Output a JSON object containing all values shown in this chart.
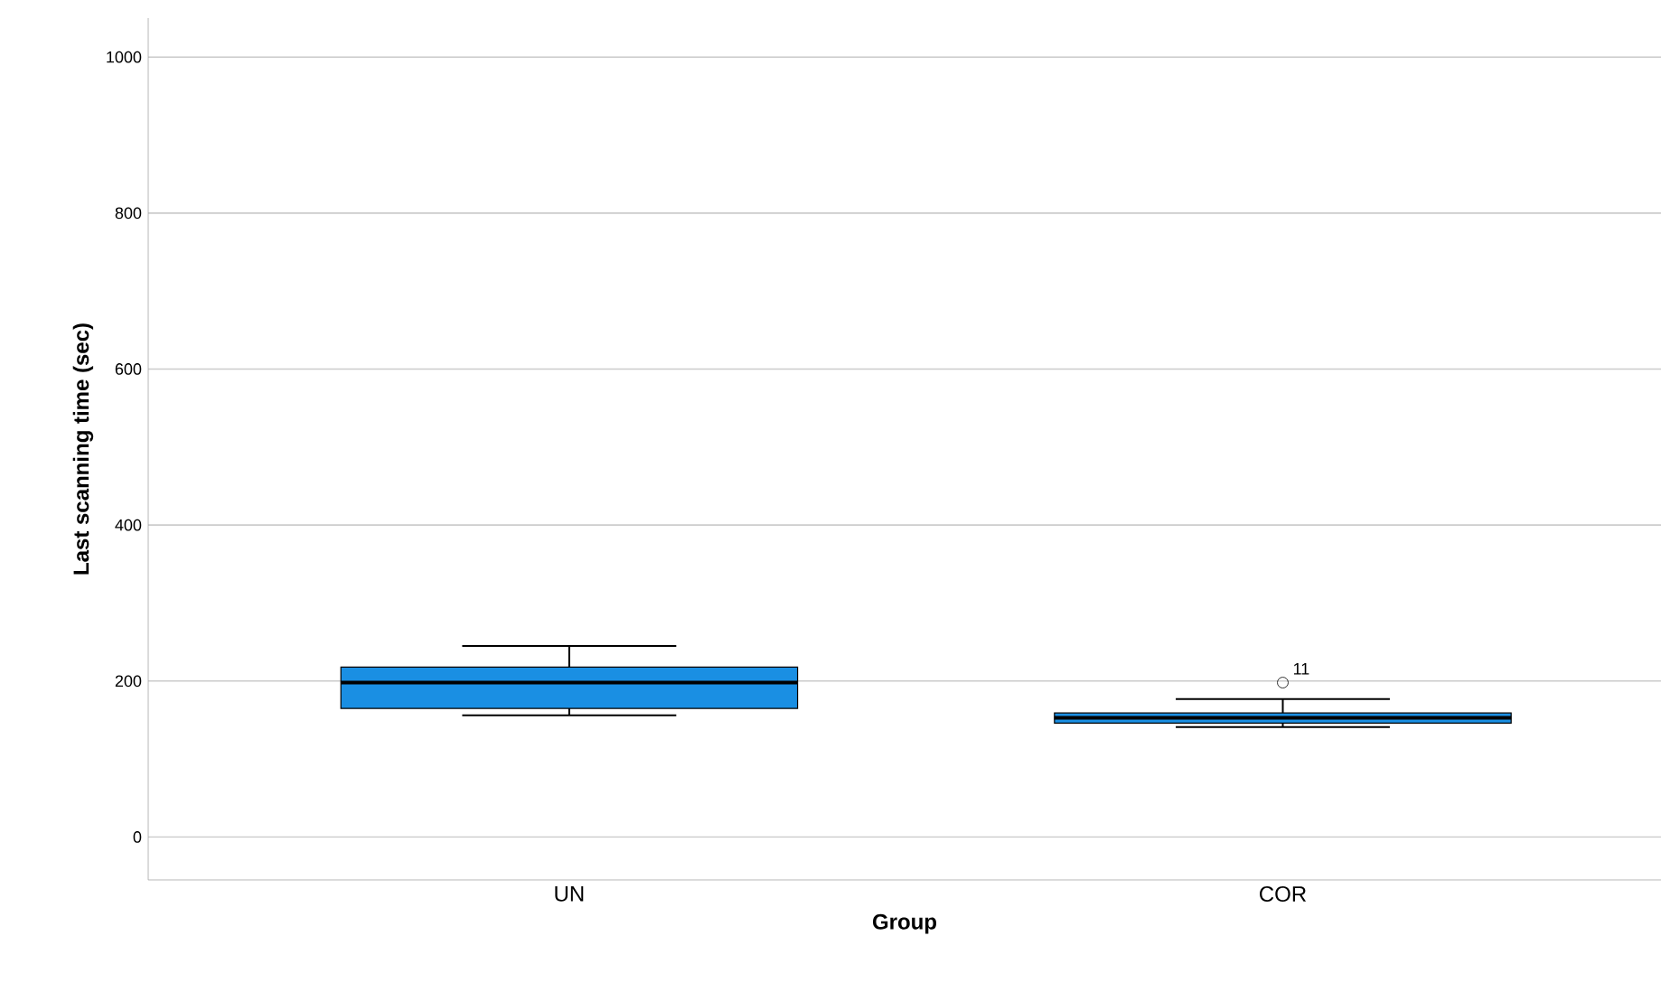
{
  "chart_data": {
    "type": "box",
    "xlabel": "Group",
    "ylabel": "Last scanning time (sec)",
    "categories": [
      "UN",
      "COR"
    ],
    "color": "#1a8fe3",
    "boxes": [
      {
        "low": 156,
        "q1": 165,
        "median": 198,
        "q3": 218,
        "high": 245
      },
      {
        "low": 141,
        "q1": 146,
        "median": 153,
        "q3": 159,
        "high": 177,
        "outliers": [
          198
        ]
      }
    ],
    "ylim": [
      -55,
      1050
    ],
    "yticks": [
      0,
      200,
      400,
      600,
      800,
      1000
    ],
    "grid": "y",
    "annotations": [
      "11"
    ]
  }
}
